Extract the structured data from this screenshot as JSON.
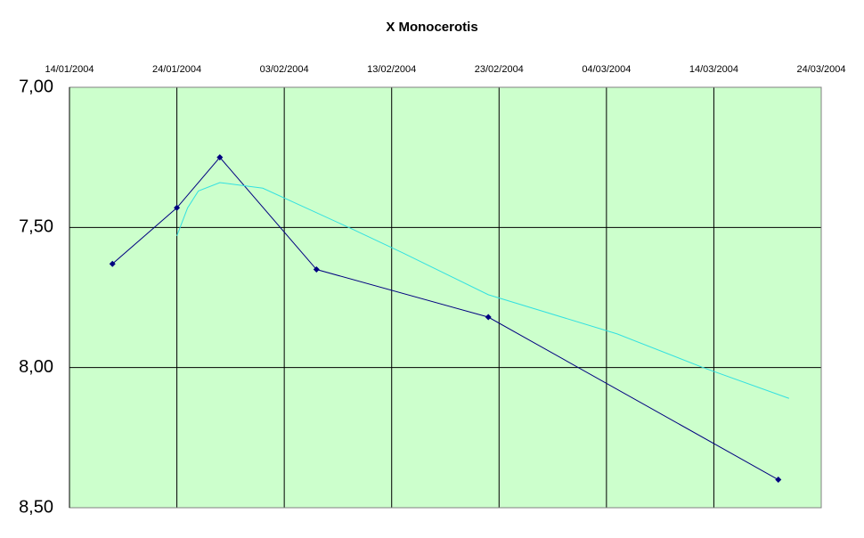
{
  "chart_data": {
    "type": "line",
    "title": "X Monocerotis",
    "xlim": [
      "2004-01-14",
      "2004-03-24"
    ],
    "xticks": [
      {
        "value": "2004-01-14",
        "label": "14/01/2004"
      },
      {
        "value": "2004-01-24",
        "label": "24/01/2004"
      },
      {
        "value": "2004-02-03",
        "label": "03/02/2004"
      },
      {
        "value": "2004-02-13",
        "label": "13/02/2004"
      },
      {
        "value": "2004-02-23",
        "label": "23/02/2004"
      },
      {
        "value": "2004-03-04",
        "label": "04/03/2004"
      },
      {
        "value": "2004-03-14",
        "label": "14/03/2004"
      },
      {
        "value": "2004-03-24",
        "label": "24/03/2004"
      }
    ],
    "ylim": [
      7,
      8.5
    ],
    "y_inverted": true,
    "yticks": [
      {
        "value": 7,
        "label": "7,00"
      },
      {
        "value": 7.5,
        "label": "7,50"
      },
      {
        "value": 8,
        "label": "8,00"
      },
      {
        "value": 8.5,
        "label": "8,50"
      }
    ],
    "grid": true,
    "series": [
      {
        "color": "#000080",
        "markers": true,
        "x": [
          "2004-01-18",
          "2004-01-24",
          "2004-01-28",
          "2004-02-06",
          "2004-02-22",
          "2004-03-20"
        ],
        "values": [
          7.63,
          7.43,
          7.25,
          7.65,
          7.82,
          8.4
        ]
      },
      {
        "color": "#33e0e0",
        "markers": false,
        "x": [
          "2004-01-24",
          "2004-01-25",
          "2004-01-26",
          "2004-01-28",
          "2004-02-01",
          "2004-02-09",
          "2004-02-14",
          "2004-02-22",
          "2004-03-05",
          "2004-03-13",
          "2004-03-21"
        ],
        "values": [
          7.53,
          7.43,
          7.37,
          7.34,
          7.36,
          7.5,
          7.59,
          7.74,
          7.88,
          8.0,
          8.11
        ]
      }
    ]
  }
}
